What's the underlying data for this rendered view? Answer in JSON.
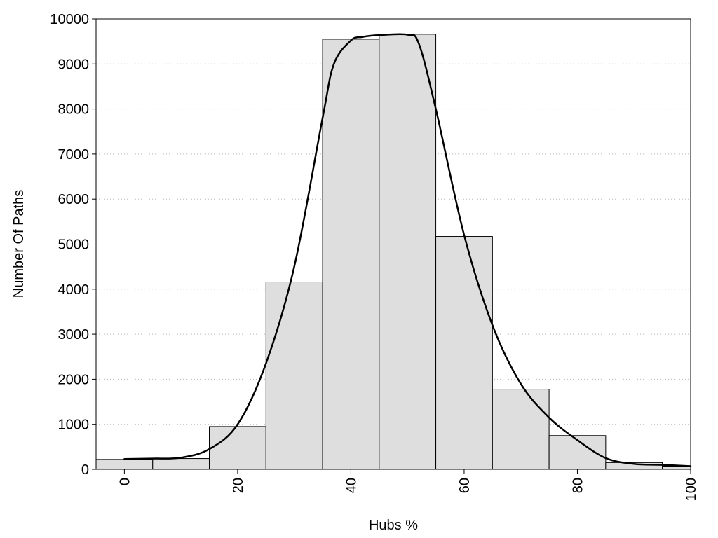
{
  "chart_data": {
    "type": "bar",
    "title": "",
    "xlabel": "Hubs %",
    "ylabel": "Number Of Paths",
    "xlim": [
      -5,
      100
    ],
    "ylim": [
      0,
      10000
    ],
    "x_ticks": [
      0,
      20,
      40,
      60,
      80,
      100
    ],
    "y_ticks": [
      0,
      1000,
      2000,
      3000,
      4000,
      5000,
      6000,
      7000,
      8000,
      9000,
      10000
    ],
    "grid": "horizontal dotted",
    "bin_width": 10,
    "bar_color": "#dedede",
    "bars": [
      {
        "x": 0,
        "value": 220
      },
      {
        "x": 10,
        "value": 240
      },
      {
        "x": 20,
        "value": 950
      },
      {
        "x": 30,
        "value": 4160
      },
      {
        "x": 40,
        "value": 9550
      },
      {
        "x": 50,
        "value": 9660
      },
      {
        "x": 60,
        "value": 5170
      },
      {
        "x": 70,
        "value": 1780
      },
      {
        "x": 80,
        "value": 750
      },
      {
        "x": 90,
        "value": 150
      },
      {
        "x": 100,
        "value": 70
      }
    ],
    "curve": {
      "type": "line",
      "x": [
        0,
        5,
        10,
        15,
        20,
        25,
        30,
        35,
        37,
        40,
        42,
        45,
        50,
        52,
        55,
        60,
        65,
        70,
        75,
        80,
        85,
        90,
        95,
        100
      ],
      "y": [
        230,
        240,
        260,
        450,
        1000,
        2350,
        4500,
        7800,
        9000,
        9520,
        9600,
        9640,
        9650,
        9450,
        8000,
        5200,
        3200,
        1900,
        1150,
        650,
        250,
        120,
        100,
        70
      ]
    }
  }
}
